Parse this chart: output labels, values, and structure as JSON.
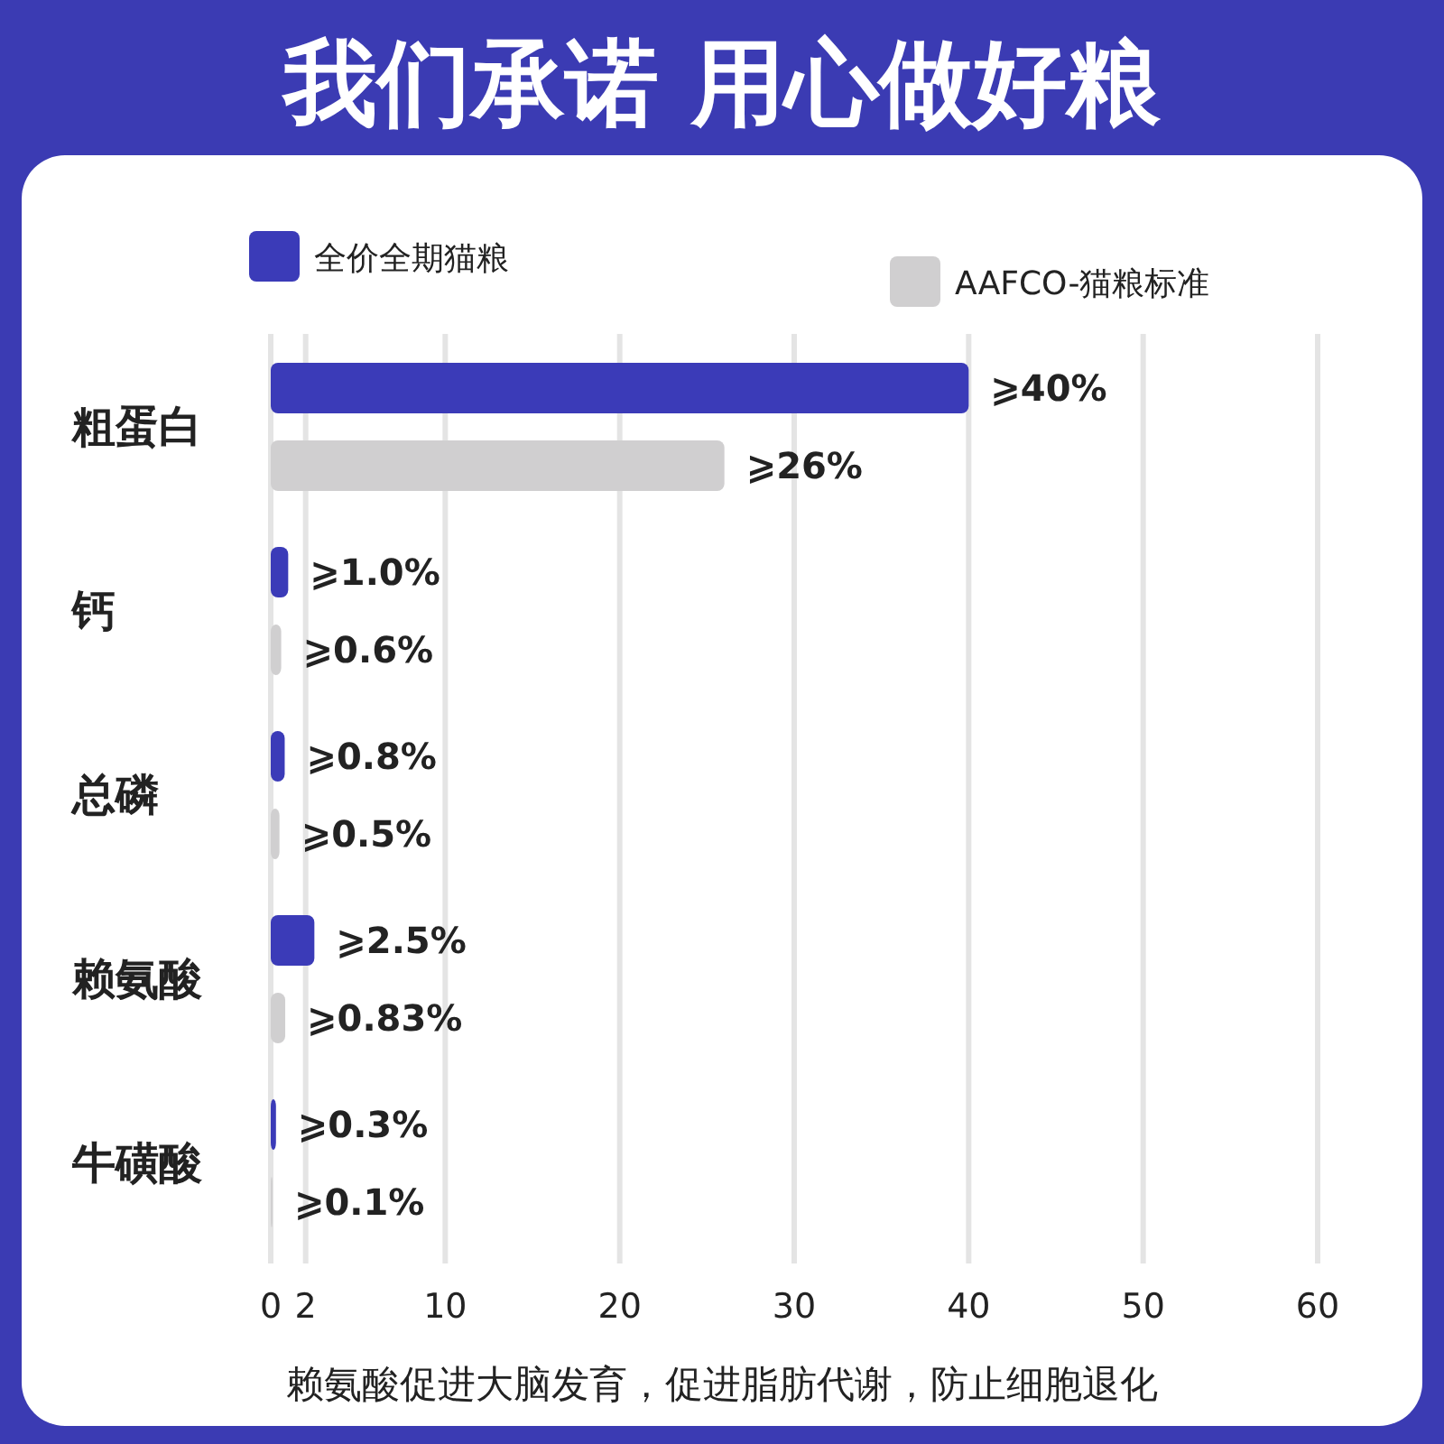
{
  "chart_data": {
    "type": "bar",
    "orientation": "horizontal",
    "title": "我们承诺 用心做好粮",
    "categories": [
      "粗蛋白",
      "钙",
      "总磷",
      "赖氨酸",
      "牛磺酸"
    ],
    "series": [
      {
        "name": "全价全期猫粮",
        "color": "#3b3bb8",
        "values": [
          40,
          1.0,
          0.8,
          2.5,
          0.3
        ],
        "value_labels": [
          "⩾40%",
          "⩾1.0%",
          "⩾0.8%",
          "⩾2.5%",
          "⩾0.3%"
        ]
      },
      {
        "name": "AAFCO-猫粮标准",
        "color": "#d0cfd0",
        "values": [
          26,
          0.6,
          0.5,
          0.83,
          0.1
        ],
        "value_labels": [
          "⩾26%",
          "⩾0.6%",
          "⩾0.5%",
          "⩾0.83%",
          "⩾0.1%"
        ]
      }
    ],
    "xlim": [
      0,
      60
    ],
    "xticks": [
      0,
      2,
      10,
      20,
      30,
      40,
      50,
      60
    ],
    "grid": "x",
    "legend": "top",
    "annotations": [
      "赖氨酸促进大脑发育，促进脂肪代谢，防止细胞退化"
    ]
  }
}
